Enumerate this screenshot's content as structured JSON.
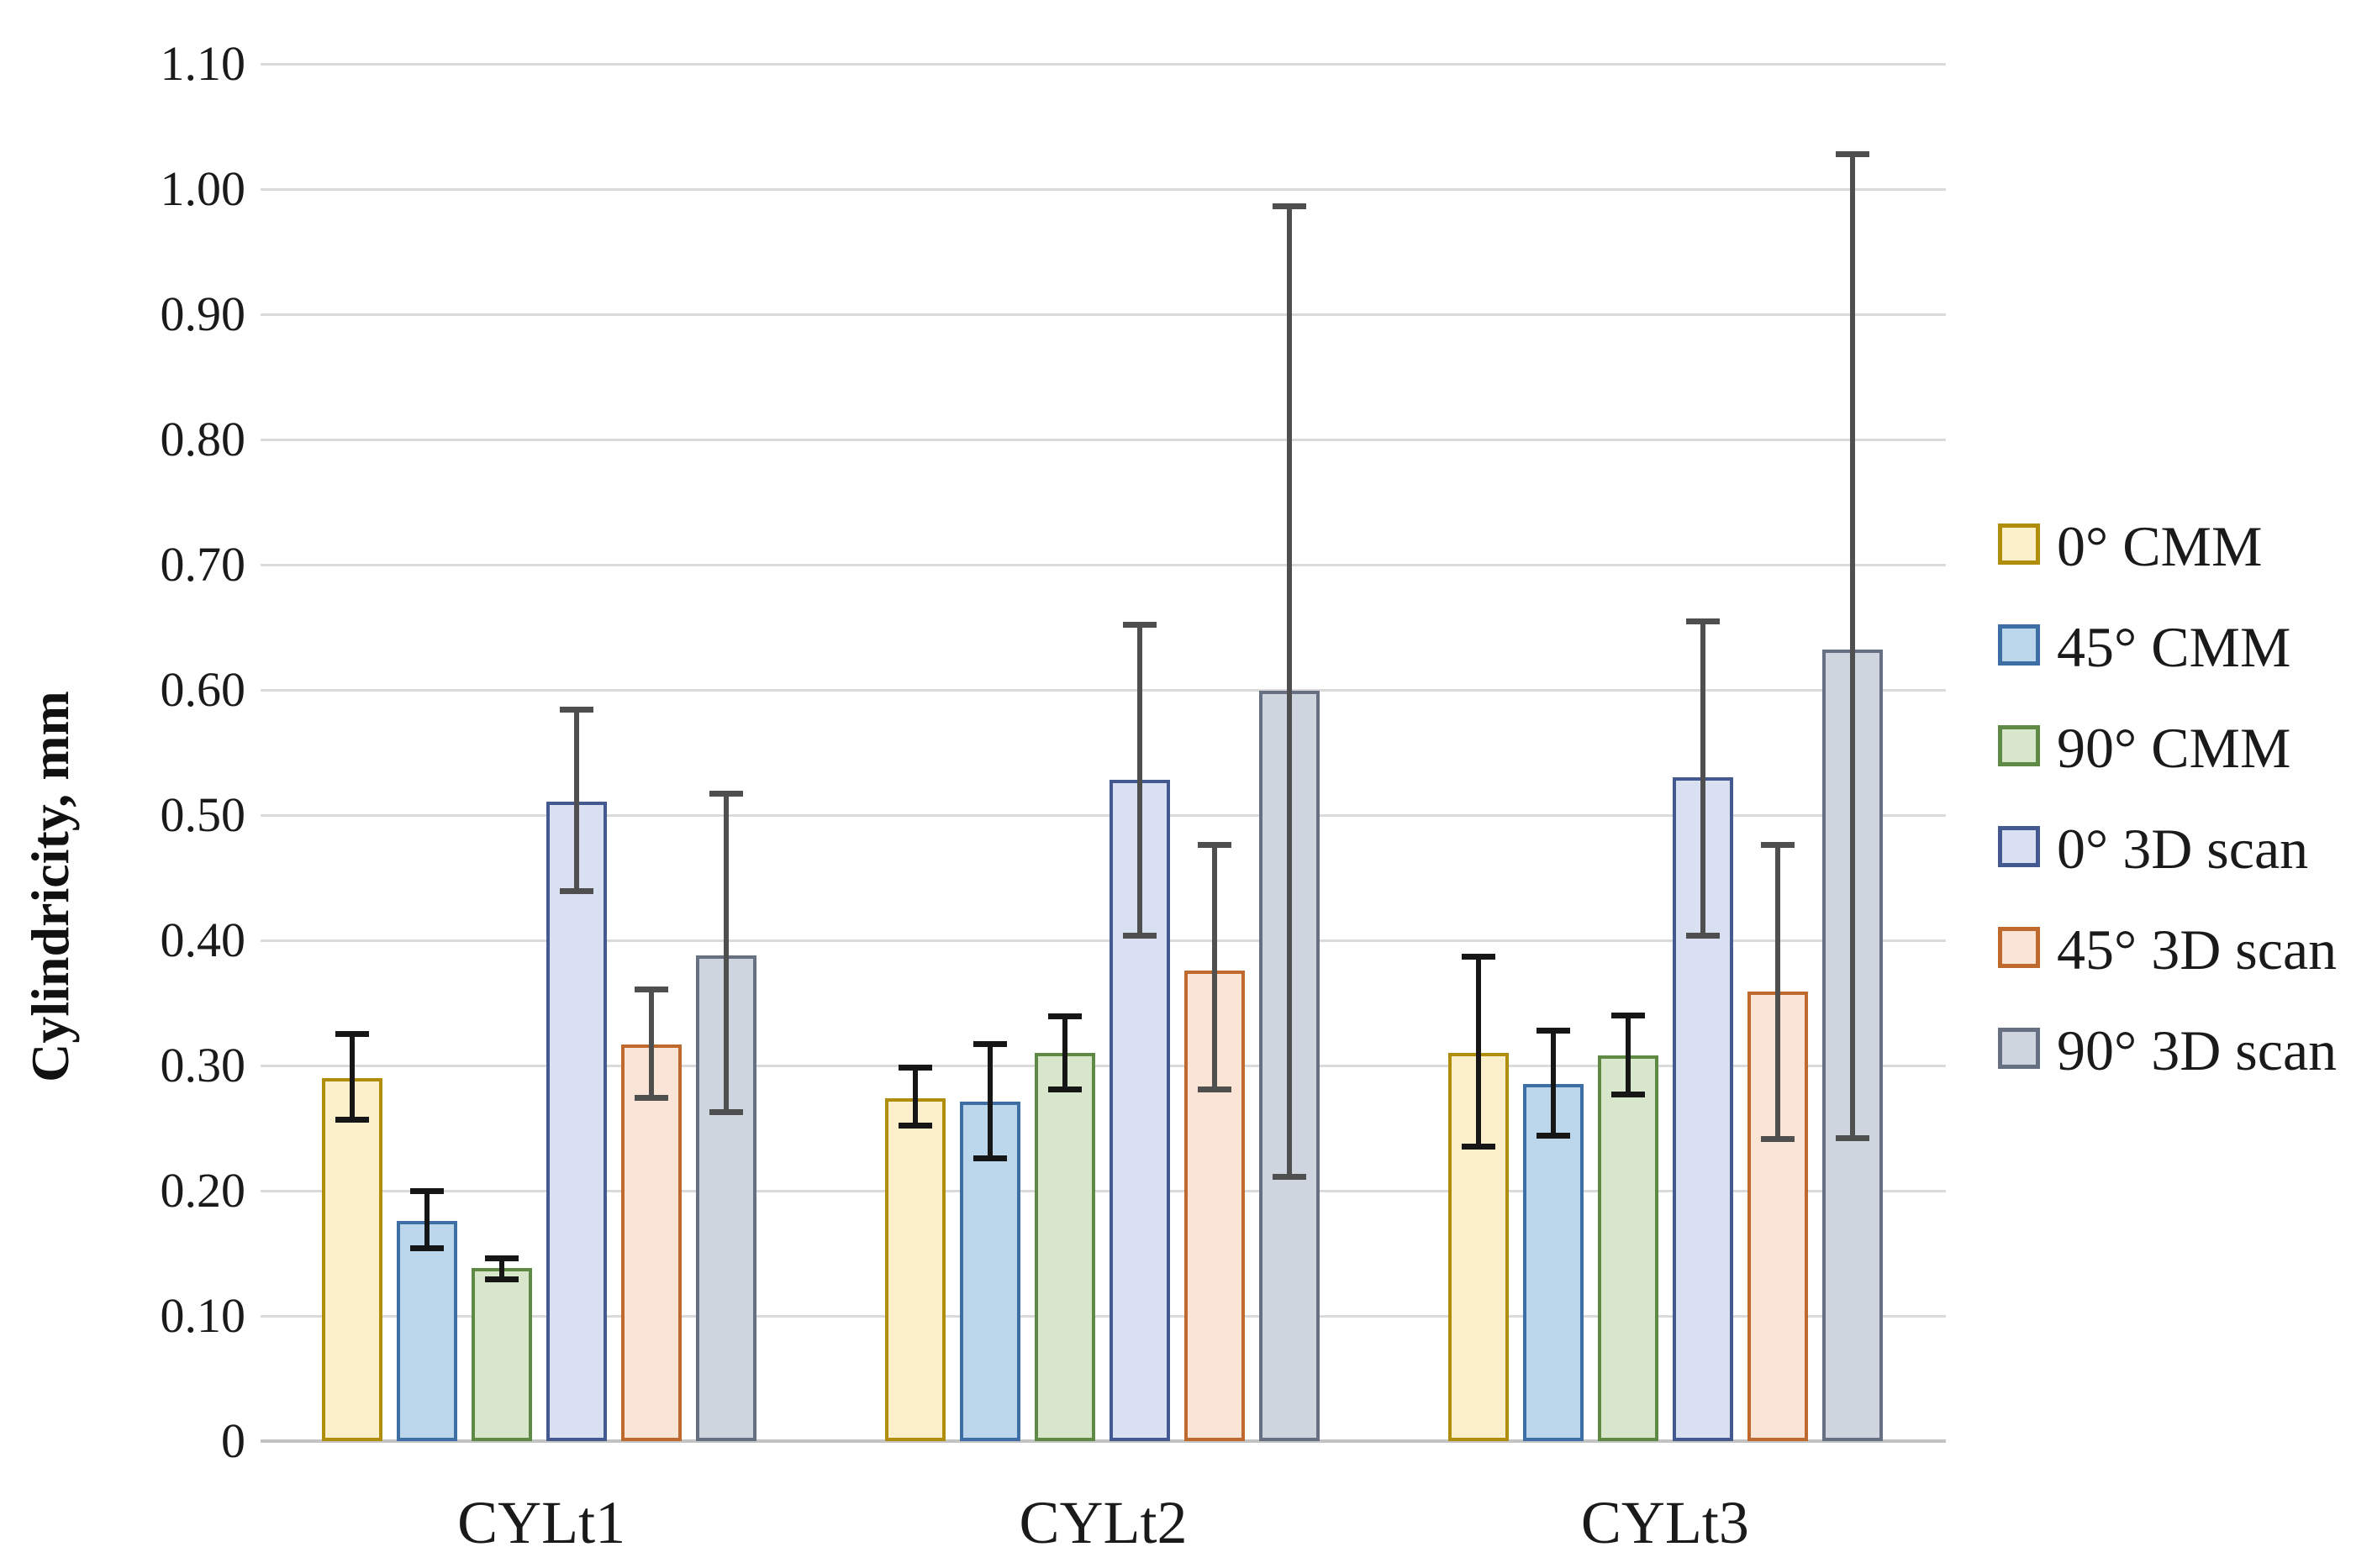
{
  "figure": {
    "background": "#ffffff",
    "grid_color": "#DADADA",
    "baseline_color": "#C3C3C3"
  },
  "chart_data": {
    "type": "bar",
    "title": "",
    "xlabel": "",
    "ylabel": "Cylindricity, mm",
    "ylim": [
      0,
      1.1
    ],
    "ytick_step": 0.1,
    "grid": "horizontal",
    "legend_position": "right",
    "error_bars": "plus-minus, absolute endpoints given in error_low/error_high",
    "yticks": [
      "0",
      "0.10",
      "0.20",
      "0.30",
      "0.40",
      "0.50",
      "0.60",
      "0.70",
      "0.80",
      "0.90",
      "1.00",
      "1.10"
    ],
    "categories": [
      "CYLt1",
      "CYLt2",
      "CYLt3"
    ],
    "series": [
      {
        "name": "0° CMM",
        "fill": "#FBF0CA",
        "border": "#B08E0B",
        "error_color": "#161616",
        "values": [
          0.29,
          0.274,
          0.31
        ],
        "error_low": [
          0.257,
          0.252,
          0.235
        ],
        "error_high": [
          0.325,
          0.298,
          0.387
        ]
      },
      {
        "name": "45° CMM",
        "fill": "#BCD7EB",
        "border": "#3D6FA5",
        "error_color": "#161616",
        "values": [
          0.176,
          0.271,
          0.285
        ],
        "error_low": [
          0.154,
          0.226,
          0.244
        ],
        "error_high": [
          0.2,
          0.317,
          0.328
        ]
      },
      {
        "name": "90° CMM",
        "fill": "#D8E7CC",
        "border": "#5F8A46",
        "error_color": "#161616",
        "values": [
          0.138,
          0.31,
          0.308
        ],
        "error_low": [
          0.129,
          0.281,
          0.277
        ],
        "error_high": [
          0.146,
          0.339,
          0.34
        ]
      },
      {
        "name": "0° 3D scan",
        "fill": "#D9E0F1",
        "border": "#43598F",
        "error_color": "#4F4F4F",
        "values": [
          0.511,
          0.528,
          0.53
        ],
        "error_low": [
          0.439,
          0.404,
          0.404
        ],
        "error_high": [
          0.584,
          0.652,
          0.655
        ]
      },
      {
        "name": "45° 3D scan",
        "fill": "#FAE4D5",
        "border": "#BE6A2E",
        "error_color": "#4F4F4F",
        "values": [
          0.317,
          0.376,
          0.359
        ],
        "error_low": [
          0.274,
          0.281,
          0.241
        ],
        "error_high": [
          0.361,
          0.476,
          0.476
        ]
      },
      {
        "name": "90° 3D scan",
        "fill": "#CFD5DE",
        "border": "#667082",
        "error_color": "#4F4F4F",
        "values": [
          0.388,
          0.599,
          0.632
        ],
        "error_low": [
          0.263,
          0.211,
          0.242
        ],
        "error_high": [
          0.517,
          0.986,
          1.028
        ]
      }
    ]
  }
}
